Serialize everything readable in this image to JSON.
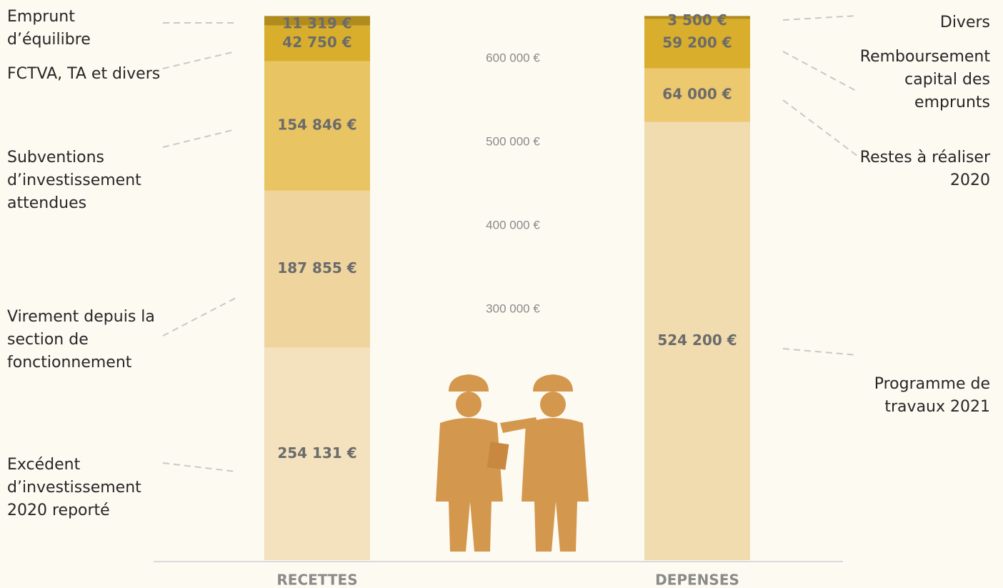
{
  "chart_data": {
    "type": "bar",
    "stacked": true,
    "categories": [
      "RECETTES",
      "DEPENSES"
    ],
    "ylim": [
      0,
      670000
    ],
    "yticks": [
      {
        "value": 300000,
        "label": "300 000 €"
      },
      {
        "value": 400000,
        "label": "400 000 €"
      },
      {
        "value": 500000,
        "label": "500 000 €"
      },
      {
        "value": 600000,
        "label": "600 000 €"
      }
    ],
    "grid": false,
    "series": [
      {
        "name": "Excédent d’investissement 2020 reporté",
        "color": "#f3e2bd",
        "values": [
          254131,
          null
        ],
        "value_labels": [
          "254 131 €",
          null
        ]
      },
      {
        "name": "Virement depuis la section de fonctionnement",
        "color": "#efd49e",
        "values": [
          187855,
          null
        ],
        "value_labels": [
          "187 855 €",
          null
        ]
      },
      {
        "name": "Subventions d’investissement attendues",
        "color": "#e8c462",
        "values": [
          154846,
          null
        ],
        "value_labels": [
          "154 846 €",
          null
        ]
      },
      {
        "name": "FCTVA, TA et divers",
        "color": "#d9ae2c",
        "values": [
          42750,
          null
        ],
        "value_labels": [
          "42 750 €",
          null
        ]
      },
      {
        "name": "Emprunt d’équilibre",
        "color": "#b08c1f",
        "values": [
          11319,
          null
        ],
        "value_labels": [
          "11 319 €",
          null
        ]
      },
      {
        "name": "Programme de travaux 2021",
        "color": "#f1dcaf",
        "values": [
          null,
          524200
        ],
        "value_labels": [
          null,
          "524 200 €"
        ]
      },
      {
        "name": "Restes à réaliser 2020",
        "color": "#ecc86f",
        "values": [
          null,
          64000
        ],
        "value_labels": [
          null,
          "64 000 €"
        ]
      },
      {
        "name": "Remboursement capital des emprunts",
        "color": "#d9ae2c",
        "values": [
          null,
          59200
        ],
        "value_labels": [
          null,
          "59 200 €"
        ]
      },
      {
        "name": "Divers",
        "color": "#b08c1f",
        "values": [
          null,
          3500
        ],
        "value_labels": [
          null,
          "3 500 €"
        ]
      }
    ]
  }
}
